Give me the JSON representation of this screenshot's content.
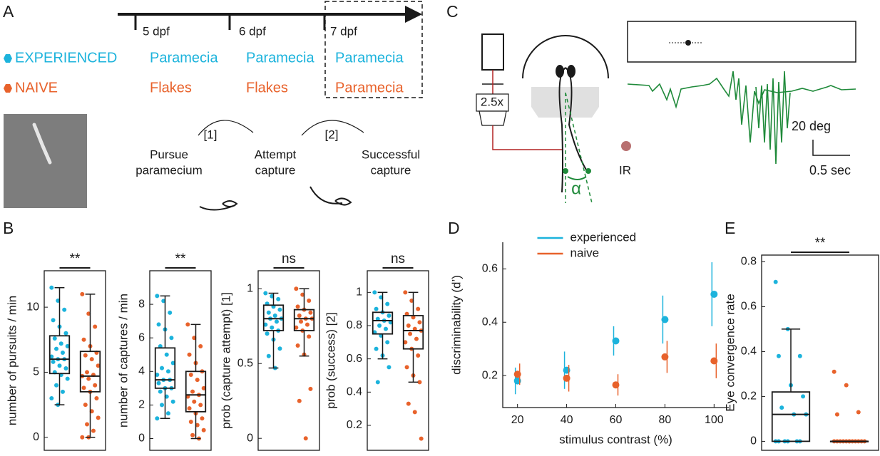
{
  "panel_labels": [
    "A",
    "B",
    "C",
    "D",
    "E"
  ],
  "timeline": {
    "days": [
      "5 dpf",
      "6 dpf",
      "7 dpf"
    ],
    "groups": [
      {
        "name": "EXPERIENCED",
        "color": "#1cb3dc",
        "diet": [
          "Paramecia",
          "Paramecia",
          "Paramecia"
        ]
      },
      {
        "name": "NAIVE",
        "color": "#e8622b",
        "diet": [
          "Flakes",
          "Flakes",
          "Paramecia"
        ]
      }
    ]
  },
  "behavior": {
    "stages": [
      [
        "Pursue",
        "paramecium"
      ],
      [
        "Attempt",
        "capture"
      ],
      [
        "Successful",
        "capture"
      ]
    ],
    "transitions": [
      "[1]",
      "[2]"
    ]
  },
  "setup": {
    "objective": "2.5x",
    "light": "IR",
    "angle": "α",
    "scale_y": "20 deg",
    "scale_x": "0.5 sec"
  },
  "chart_data": [
    {
      "type": "box",
      "ylabel": "number of pursuits / min",
      "ylim": [
        -1,
        12.8
      ],
      "yticks": [
        0,
        5,
        10
      ],
      "significance": "**",
      "series": [
        {
          "color": "#1cb3dc",
          "min": 2.5,
          "q1": 4.9,
          "median": 6,
          "q3": 7.8,
          "max": 11.5,
          "points": [
            11.5,
            10.5,
            9.8,
            9,
            8.5,
            8,
            7.6,
            7.2,
            7,
            6.8,
            6.5,
            6.2,
            6,
            6,
            5.8,
            5.5,
            5.3,
            5,
            4.8,
            4.5,
            4,
            3.5,
            3,
            2.5
          ]
        },
        {
          "color": "#e8622b",
          "min": 0,
          "q1": 3.5,
          "median": 4.7,
          "q3": 6.6,
          "max": 11,
          "points": [
            11,
            9.5,
            8.5,
            7.5,
            7,
            6.5,
            6.3,
            6,
            5.5,
            5,
            4.8,
            4.7,
            4.5,
            4,
            3.8,
            3.5,
            3,
            2.5,
            2,
            1.5,
            1,
            0.5,
            0,
            0
          ]
        }
      ]
    },
    {
      "type": "box",
      "ylabel": "number of captures / min",
      "ylim": [
        -0.7,
        10
      ],
      "yticks": [
        0,
        2,
        4,
        6,
        8
      ],
      "significance": "**",
      "series": [
        {
          "color": "#1cb3dc",
          "min": 1.2,
          "q1": 3,
          "median": 3.5,
          "q3": 5.4,
          "max": 8.5,
          "points": [
            8.5,
            8.2,
            7.5,
            6.8,
            6.5,
            6,
            5.5,
            5,
            4.5,
            4.2,
            4,
            3.8,
            3.5,
            3.5,
            3.3,
            3,
            3,
            2.8,
            2.5,
            2.2,
            2,
            1.5,
            1.2
          ]
        },
        {
          "color": "#e8622b",
          "min": 0,
          "q1": 1.6,
          "median": 2.6,
          "q3": 4,
          "max": 6.8,
          "points": [
            6.8,
            6,
            5.5,
            5,
            4.5,
            4,
            3.8,
            3.5,
            3,
            2.8,
            2.6,
            2.5,
            2.2,
            2,
            1.8,
            1.5,
            1.2,
            1,
            0.8,
            0.5,
            0.2,
            0
          ]
        }
      ]
    },
    {
      "type": "box",
      "ylabel": "prob (capture attempt) [1]",
      "ylim": [
        -0.08,
        1.12
      ],
      "yticks": [
        0,
        0.5,
        1
      ],
      "significance": "ns",
      "series": [
        {
          "color": "#1cb3dc",
          "min": 0.47,
          "q1": 0.72,
          "median": 0.8,
          "q3": 0.89,
          "max": 0.97,
          "points": [
            0.97,
            0.95,
            0.93,
            0.9,
            0.88,
            0.86,
            0.84,
            0.82,
            0.8,
            0.8,
            0.78,
            0.76,
            0.74,
            0.72,
            0.7,
            0.66,
            0.6,
            0.55,
            0.47
          ]
        },
        {
          "color": "#e8622b",
          "min": 0.55,
          "q1": 0.72,
          "median": 0.8,
          "q3": 0.86,
          "max": 1,
          "points": [
            1,
            0.96,
            0.92,
            0.88,
            0.86,
            0.84,
            0.82,
            0.8,
            0.8,
            0.78,
            0.76,
            0.74,
            0.72,
            0.68,
            0.62,
            0.56,
            0.33,
            0.25,
            0
          ]
        }
      ]
    },
    {
      "type": "box",
      "ylabel": "prob (success) [2]",
      "ylim": [
        0.05,
        1.13
      ],
      "yticks": [
        0.2,
        0.4,
        0.6,
        0.8,
        1
      ],
      "significance": "ns",
      "series": [
        {
          "color": "#1cb3dc",
          "min": 0.6,
          "q1": 0.75,
          "median": 0.83,
          "q3": 0.88,
          "max": 1,
          "points": [
            1,
            0.97,
            0.93,
            0.9,
            0.88,
            0.86,
            0.84,
            0.83,
            0.82,
            0.8,
            0.78,
            0.76,
            0.74,
            0.7,
            0.66,
            0.62,
            0.55,
            0.46
          ]
        },
        {
          "color": "#e8622b",
          "min": 0.46,
          "q1": 0.66,
          "median": 0.77,
          "q3": 0.86,
          "max": 1,
          "points": [
            1,
            0.95,
            0.9,
            0.87,
            0.85,
            0.82,
            0.8,
            0.78,
            0.77,
            0.75,
            0.72,
            0.7,
            0.66,
            0.62,
            0.55,
            0.5,
            0.46,
            0.33,
            0.28,
            0.12
          ]
        }
      ]
    },
    {
      "type": "line",
      "xlabel": "stimulus contrast (%)",
      "ylabel": "discriminability (d’)",
      "xlim": [
        14,
        106
      ],
      "ylim": [
        0.08,
        0.7
      ],
      "xticks": [
        20,
        40,
        60,
        80,
        100
      ],
      "yticks": [
        0.2,
        0.4,
        0.6
      ],
      "legend": "upper center",
      "x": [
        20,
        40,
        60,
        80,
        100
      ],
      "series": [
        {
          "name": "experienced",
          "color": "#1cb3dc",
          "values": [
            0.18,
            0.22,
            0.33,
            0.41,
            0.505
          ],
          "errors": [
            0.05,
            0.07,
            0.055,
            0.09,
            0.12
          ]
        },
        {
          "name": "naive",
          "color": "#e8622b",
          "values": [
            0.205,
            0.19,
            0.165,
            0.27,
            0.255
          ],
          "errors": [
            0.04,
            0.05,
            0.04,
            0.06,
            0.065
          ]
        }
      ]
    },
    {
      "type": "box",
      "ylabel": "Eye convergence rate",
      "ylim": [
        -0.04,
        0.83
      ],
      "yticks": [
        0,
        0.2,
        0.4,
        0.6,
        0.8
      ],
      "significance": "**",
      "series": [
        {
          "color": "#1cb3dc",
          "min": 0,
          "q1": 0,
          "median": 0.12,
          "q3": 0.22,
          "max": 0.5,
          "points": [
            0.71,
            0.5,
            0.38,
            0.38,
            0.25,
            0.2,
            0.15,
            0.12,
            0.12,
            0,
            0,
            0,
            0,
            0,
            0
          ]
        },
        {
          "color": "#e8622b",
          "min": 0,
          "q1": 0,
          "median": 0,
          "q3": 0,
          "max": 0,
          "points": [
            0.31,
            0.25,
            0.13,
            0.12,
            0,
            0,
            0,
            0,
            0,
            0,
            0,
            0,
            0,
            0,
            0,
            0
          ]
        }
      ]
    }
  ]
}
